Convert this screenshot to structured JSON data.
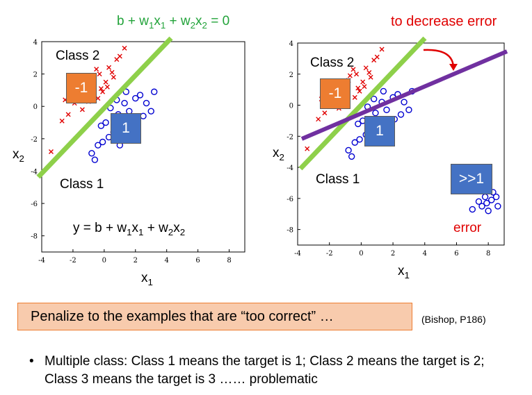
{
  "top_equation": {
    "base": "b + w",
    "s1": "1",
    "m1": "x",
    "s2": "1",
    "m2": " + w",
    "s3": "2",
    "m3": "x",
    "s4": "2",
    "tail": " = 0"
  },
  "right_title": "to decrease error",
  "left_plot": {
    "class2_label": "Class 2",
    "class1_label": "Class 1",
    "badge_neg": "-1",
    "badge_pos": "1",
    "y_equation": {
      "a": "y = b + w",
      "s1": "1",
      "b": "x",
      "s2": "1",
      "c": " + w",
      "s3": "2",
      "d": "x",
      "s4": "2"
    },
    "xlabel": {
      "base": "x",
      "sub": "1"
    },
    "ylabel": {
      "base": "x",
      "sub": "2"
    }
  },
  "right_plot": {
    "class2_label": "Class 2",
    "class1_label": "Class 1",
    "badge_neg": "-1",
    "badge_pos": "1",
    "badge_far": ">>1",
    "error_label": "error",
    "xlabel": {
      "base": "x",
      "sub": "1"
    },
    "ylabel": {
      "base": "x",
      "sub": "2"
    }
  },
  "colors": {
    "green_line": "#8ed04a",
    "purple_line": "#7030a0",
    "red_marker": "#e00000",
    "blue_marker": "#0000d0",
    "orange_badge": "#ed7d31",
    "blue_badge": "#4472c4"
  },
  "chart_data": [
    {
      "type": "scatter",
      "x_ticks": [
        "-4",
        "-2",
        "0",
        "2",
        "4",
        "6",
        "8"
      ],
      "y_ticks": [
        "4",
        "2",
        "0",
        "-2",
        "-4",
        "-6",
        "-8"
      ],
      "xlim": [
        -4,
        9
      ],
      "ylim": [
        -9,
        4
      ],
      "series": [
        {
          "name": "Class 2",
          "marker": "x",
          "points": [
            [
              -1.9,
              0.2
            ],
            [
              -1.5,
              0.8
            ],
            [
              -0.8,
              1.6
            ],
            [
              -0.5,
              2.3
            ],
            [
              -0.2,
              1.1
            ],
            [
              0.3,
              2.4
            ],
            [
              0.8,
              2.9
            ],
            [
              1.3,
              3.6
            ],
            [
              -1.2,
              1.3
            ],
            [
              -2.3,
              -0.5
            ],
            [
              -2.7,
              -0.9
            ],
            [
              -0.4,
              0.5
            ],
            [
              0.1,
              1.5
            ],
            [
              -0.1,
              0.9
            ],
            [
              -1.0,
              0.3
            ],
            [
              0.5,
              2.1
            ],
            [
              -3.4,
              -2.8
            ],
            [
              -2.5,
              0.4
            ],
            [
              -0.7,
              1.9
            ],
            [
              -0.3,
              2.0
            ],
            [
              0.2,
              1.2
            ],
            [
              -1.4,
              -0.2
            ],
            [
              0.6,
              1.8
            ],
            [
              1.0,
              3.1
            ],
            [
              -0.9,
              1.0
            ]
          ]
        },
        {
          "name": "Class 1",
          "marker": "o",
          "points": [
            [
              0.4,
              -0.1
            ],
            [
              0.9,
              -0.5
            ],
            [
              1.1,
              -1.0
            ],
            [
              1.3,
              0.2
            ],
            [
              1.6,
              -0.3
            ],
            [
              2.0,
              0.5
            ],
            [
              2.3,
              0.7
            ],
            [
              2.7,
              0.2
            ],
            [
              3.2,
              0.9
            ],
            [
              1.5,
              -1.2
            ],
            [
              0.6,
              -1.6
            ],
            [
              0.3,
              -1.9
            ],
            [
              -0.1,
              -2.2
            ],
            [
              -0.4,
              -2.4
            ],
            [
              -0.8,
              -2.9
            ],
            [
              -0.6,
              -3.3
            ],
            [
              0.1,
              -1.0
            ],
            [
              1.0,
              -2.4
            ],
            [
              1.8,
              -1.5
            ],
            [
              2.1,
              -0.9
            ],
            [
              0.8,
              0.4
            ],
            [
              -0.2,
              -1.2
            ],
            [
              1.4,
              0.9
            ],
            [
              2.5,
              -0.6
            ],
            [
              3.0,
              -0.3
            ]
          ]
        }
      ]
    },
    {
      "type": "scatter",
      "x_ticks": [
        "-4",
        "-2",
        "0",
        "2",
        "4",
        "6",
        "8"
      ],
      "y_ticks": [
        "4",
        "2",
        "0",
        "-2",
        "-4",
        "-6",
        "-8"
      ],
      "xlim": [
        -4,
        9
      ],
      "ylim": [
        -9,
        4
      ],
      "series": [
        {
          "name": "Class 2",
          "marker": "x",
          "points": [
            [
              -1.9,
              0.2
            ],
            [
              -1.5,
              0.8
            ],
            [
              -0.8,
              1.6
            ],
            [
              -0.5,
              2.3
            ],
            [
              -0.2,
              1.1
            ],
            [
              0.3,
              2.4
            ],
            [
              0.8,
              2.9
            ],
            [
              1.3,
              3.6
            ],
            [
              -1.2,
              1.3
            ],
            [
              -2.3,
              -0.5
            ],
            [
              -2.7,
              -0.9
            ],
            [
              -0.4,
              0.5
            ],
            [
              0.1,
              1.5
            ],
            [
              -0.1,
              0.9
            ],
            [
              -1.0,
              0.3
            ],
            [
              0.5,
              2.1
            ],
            [
              -3.4,
              -2.8
            ],
            [
              -2.5,
              0.4
            ],
            [
              -0.7,
              1.9
            ],
            [
              -0.3,
              2.0
            ],
            [
              0.2,
              1.2
            ],
            [
              -1.4,
              -0.2
            ],
            [
              0.6,
              1.8
            ],
            [
              1.0,
              3.1
            ],
            [
              -0.9,
              1.0
            ]
          ]
        },
        {
          "name": "Class 1",
          "marker": "o",
          "points": [
            [
              0.4,
              -0.1
            ],
            [
              0.9,
              -0.5
            ],
            [
              1.1,
              -1.0
            ],
            [
              1.3,
              0.2
            ],
            [
              1.6,
              -0.3
            ],
            [
              2.0,
              0.5
            ],
            [
              2.3,
              0.7
            ],
            [
              2.7,
              0.2
            ],
            [
              3.2,
              0.9
            ],
            [
              1.5,
              -1.2
            ],
            [
              0.6,
              -1.6
            ],
            [
              0.3,
              -1.9
            ],
            [
              -0.1,
              -2.2
            ],
            [
              -0.4,
              -2.4
            ],
            [
              -0.8,
              -2.9
            ],
            [
              -0.6,
              -3.3
            ],
            [
              0.1,
              -1.0
            ],
            [
              1.0,
              -2.4
            ],
            [
              1.8,
              -1.5
            ],
            [
              2.1,
              -0.9
            ],
            [
              0.8,
              0.4
            ],
            [
              -0.2,
              -1.2
            ],
            [
              1.4,
              0.9
            ],
            [
              2.5,
              -0.6
            ],
            [
              3.0,
              -0.3
            ],
            [
              7.0,
              -6.7
            ],
            [
              7.4,
              -6.2
            ],
            [
              7.8,
              -5.9
            ],
            [
              8.2,
              -6.1
            ],
            [
              8.6,
              -6.5
            ],
            [
              7.6,
              -6.5
            ],
            [
              8.0,
              -6.8
            ],
            [
              8.3,
              -5.6
            ],
            [
              7.9,
              -6.3
            ],
            [
              8.5,
              -5.9
            ]
          ]
        }
      ]
    }
  ],
  "penalize_text": "Penalize to the examples that are “too correct” …",
  "citation": "(Bishop, P186)",
  "bullet": {
    "symbol": "•",
    "text": "Multiple class: Class 1 means the target is 1; Class 2 means the target is 2; Class 3 means the target is 3 …… problematic"
  }
}
